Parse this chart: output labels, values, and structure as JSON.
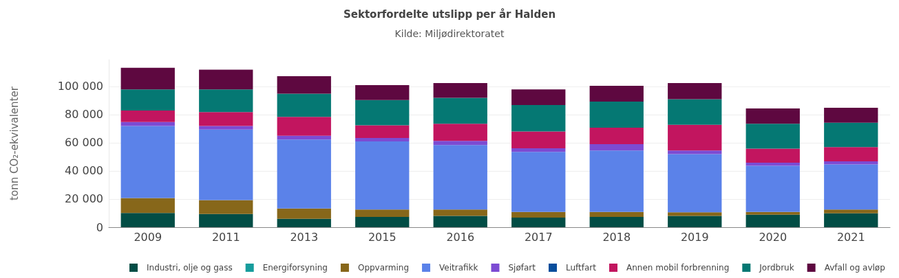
{
  "chart_data": {
    "type": "bar",
    "title": "Sektorfordelte utslipp per år Halden",
    "subtitle": "Kilde: Miljødirektoratet",
    "ylabel": "tonn CO₂-ekvivalenter",
    "categories": [
      "2009",
      "2011",
      "2013",
      "2015",
      "2016",
      "2017",
      "2018",
      "2019",
      "2020",
      "2021"
    ],
    "stacked": true,
    "series": [
      {
        "name": "Industri, olje og gass",
        "color": "#014d45",
        "values": [
          10100,
          9400,
          6000,
          7300,
          8000,
          6800,
          7300,
          8000,
          8900,
          9900
        ]
      },
      {
        "name": "Energiforsyning",
        "color": "#169c9c",
        "values": [
          0,
          0,
          0,
          0,
          0,
          0,
          0,
          0,
          0,
          0
        ]
      },
      {
        "name": "Oppvarming",
        "color": "#87671a",
        "values": [
          10600,
          9900,
          7300,
          5200,
          4500,
          4100,
          3600,
          2600,
          2000,
          2600
        ]
      },
      {
        "name": "Veitrafikk",
        "color": "#5b82e9",
        "values": [
          51200,
          50100,
          49000,
          48500,
          45900,
          42600,
          43600,
          41400,
          32800,
          32100
        ]
      },
      {
        "name": "Sjøfart",
        "color": "#7c4bd3",
        "values": [
          2900,
          2500,
          2700,
          2400,
          2900,
          2600,
          4500,
          2500,
          2200,
          2200
        ]
      },
      {
        "name": "Luftfart",
        "color": "#084e9c",
        "values": [
          0,
          0,
          0,
          0,
          0,
          0,
          0,
          0,
          0,
          0
        ]
      },
      {
        "name": "Annen mobil forbrenning",
        "color": "#c2155f",
        "values": [
          8100,
          9900,
          13400,
          9000,
          12200,
          11900,
          11700,
          18300,
          10000,
          10100
        ]
      },
      {
        "name": "Jordbruk",
        "color": "#057873",
        "values": [
          15000,
          16100,
          16400,
          18000,
          18400,
          18800,
          18600,
          18100,
          17600,
          17400
        ]
      },
      {
        "name": "Avfall og avløp",
        "color": "#5e0840",
        "values": [
          15400,
          14000,
          12500,
          10600,
          10500,
          11100,
          11200,
          11500,
          10900,
          10600
        ]
      }
    ],
    "ylim": [
      0,
      119000
    ],
    "yticks": [
      {
        "value": 0,
        "label": "0"
      },
      {
        "value": 20000,
        "label": "20 000"
      },
      {
        "value": 40000,
        "label": "40 000"
      },
      {
        "value": 60000,
        "label": "60 000"
      },
      {
        "value": 80000,
        "label": "80 000"
      },
      {
        "value": 100000,
        "label": "100 000"
      }
    ],
    "grid": "y",
    "legend": "bottom"
  }
}
